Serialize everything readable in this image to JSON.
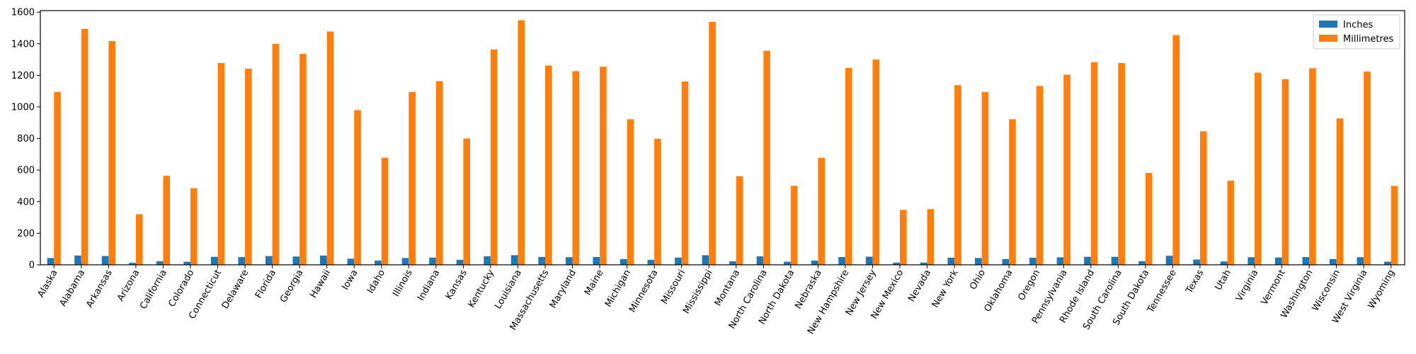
{
  "chart_data": {
    "type": "bar",
    "title": "",
    "xlabel": "",
    "ylabel": "",
    "ylim": [
      0,
      1610
    ],
    "yticks": [
      0,
      200,
      400,
      600,
      800,
      1000,
      1200,
      1400,
      1600
    ],
    "grid": false,
    "legend_position": "top-right",
    "categories": [
      "Alaska",
      "Alabama",
      "Arkansas",
      "Arizona",
      "California",
      "Colorado",
      "Connecticut",
      "Delaware",
      "Florida",
      "Georgia",
      "Hawaii",
      "Iowa",
      "Idaho",
      "Illinois",
      "Indiana",
      "Kansas",
      "Kentucky",
      "Louisiana",
      "Massachusetts",
      "Maryland",
      "Maine",
      "Michigan",
      "Minnesota",
      "Missouri",
      "Mississippi",
      "Montana",
      "North Carolina",
      "North Dakota",
      "Nebraska",
      "New Hampshire",
      "New Jersey",
      "New Mexico",
      "Nevada",
      "New York",
      "Ohio",
      "Oklahoma",
      "Oregon",
      "Pennsylvania",
      "Rhode Island",
      "South Carolina",
      "South Dakota",
      "Tennessee",
      "Texas",
      "Utah",
      "Virginia",
      "Vermont",
      "Washington",
      "Wisconsin",
      "West Virginia",
      "Wyoming"
    ],
    "series": [
      {
        "name": "Inches",
        "color": "#1f77b4",
        "values": [
          43.1,
          58.8,
          55.8,
          12.6,
          22.2,
          19.1,
          50.3,
          48.9,
          55.1,
          52.6,
          58.2,
          38.6,
          26.7,
          43.1,
          45.8,
          31.5,
          53.7,
          61.0,
          49.7,
          48.3,
          49.4,
          36.3,
          31.4,
          45.7,
          60.6,
          22.1,
          53.4,
          19.7,
          26.7,
          49.1,
          51.2,
          13.7,
          13.9,
          44.8,
          43.1,
          36.3,
          44.6,
          47.4,
          50.5,
          50.3,
          22.9,
          57.3,
          33.3,
          21.0,
          47.9,
          46.3,
          49.0,
          36.5,
          48.2,
          19.7
        ]
      },
      {
        "name": "Millimetres",
        "color": "#ff7f0e",
        "values": [
          1095,
          1494,
          1417,
          320,
          564,
          485,
          1278,
          1242,
          1400,
          1336,
          1478,
          980,
          678,
          1095,
          1163,
          800,
          1364,
          1549,
          1262,
          1227,
          1255,
          922,
          798,
          1161,
          1539,
          561,
          1356,
          500,
          678,
          1247,
          1300,
          348,
          353,
          1138,
          1095,
          922,
          1133,
          1204,
          1283,
          1278,
          582,
          1455,
          846,
          533,
          1217,
          1176,
          1245,
          927,
          1224,
          500
        ]
      }
    ]
  }
}
